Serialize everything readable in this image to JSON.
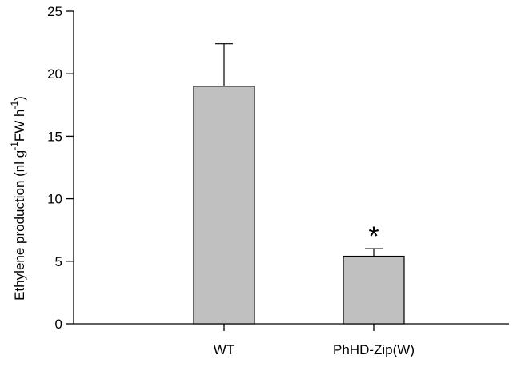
{
  "chart_data": {
    "type": "bar",
    "categories": [
      "WT",
      "PhHD-Zip(W)"
    ],
    "values": [
      19.0,
      5.4
    ],
    "error_upper": [
      22.4,
      6.0
    ],
    "annotations": [
      "",
      "*"
    ],
    "ylabel": {
      "main": "Ethylene production (nl g",
      "sup1": "-1",
      "mid": "FW  h",
      "sup2": "-1",
      "end": ")"
    },
    "xlabel": "",
    "ylim": [
      0,
      25
    ],
    "yticks": [
      "0",
      "5",
      "10",
      "15",
      "20",
      "25"
    ],
    "grid": false,
    "bar_color": "#c0c0c0",
    "edge_color": "#000000"
  }
}
